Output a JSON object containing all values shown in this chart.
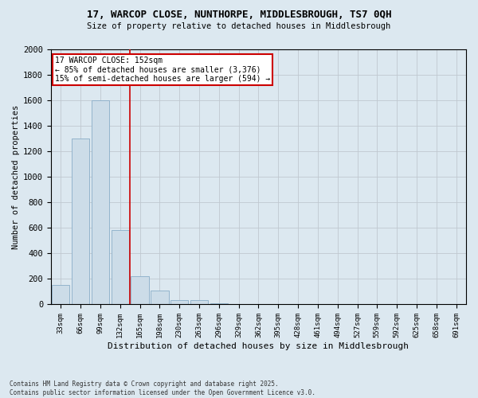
{
  "title_line1": "17, WARCOP CLOSE, NUNTHORPE, MIDDLESBROUGH, TS7 0QH",
  "title_line2": "Size of property relative to detached houses in Middlesbrough",
  "xlabel": "Distribution of detached houses by size in Middlesbrough",
  "ylabel": "Number of detached properties",
  "categories": [
    "33sqm",
    "66sqm",
    "99sqm",
    "132sqm",
    "165sqm",
    "198sqm",
    "230sqm",
    "263sqm",
    "296sqm",
    "329sqm",
    "362sqm",
    "395sqm",
    "428sqm",
    "461sqm",
    "494sqm",
    "527sqm",
    "559sqm",
    "592sqm",
    "625sqm",
    "658sqm",
    "691sqm"
  ],
  "values": [
    150,
    1300,
    1600,
    580,
    220,
    110,
    35,
    35,
    12,
    5,
    2,
    1,
    0,
    0,
    0,
    0,
    0,
    0,
    0,
    0,
    0
  ],
  "bar_color": "#ccdce8",
  "bar_edge_color": "#89adc8",
  "red_line_x": 3.5,
  "annotation_text": "17 WARCOP CLOSE: 152sqm\n← 85% of detached houses are smaller (3,376)\n15% of semi-detached houses are larger (594) →",
  "annotation_box_color": "#ffffff",
  "annotation_box_edge_color": "#cc0000",
  "red_line_color": "#cc0000",
  "grid_color": "#c0c8d0",
  "background_color": "#dce8f0",
  "plot_background": "#dce8f0",
  "ylim": [
    0,
    2000
  ],
  "yticks": [
    0,
    200,
    400,
    600,
    800,
    1000,
    1200,
    1400,
    1600,
    1800,
    2000
  ],
  "footer_line1": "Contains HM Land Registry data © Crown copyright and database right 2025.",
  "footer_line2": "Contains public sector information licensed under the Open Government Licence v3.0."
}
